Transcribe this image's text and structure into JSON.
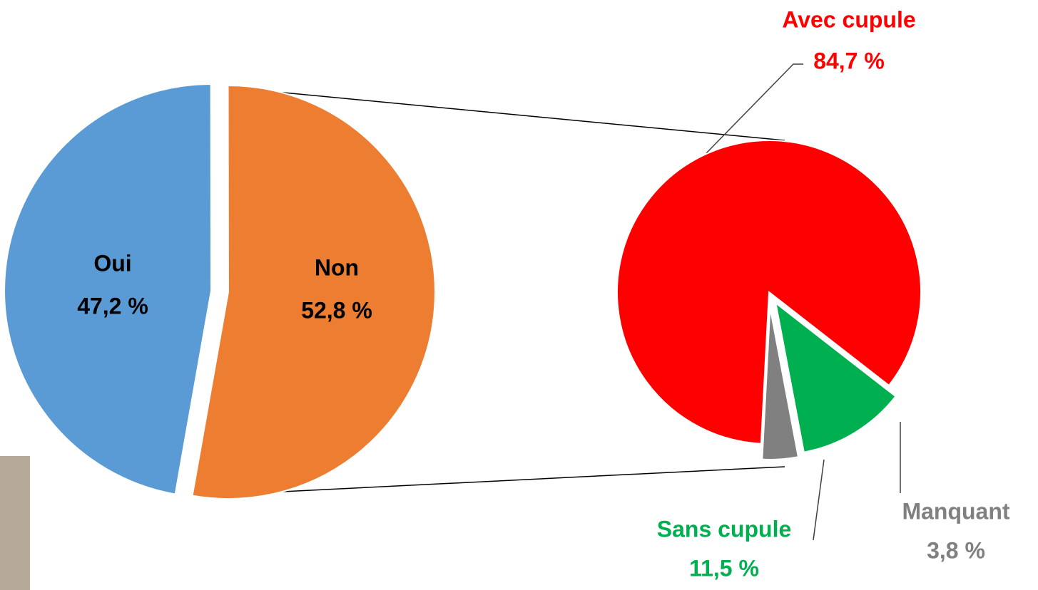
{
  "chart_data": [
    {
      "type": "pie",
      "categories": [
        "Oui",
        "Non"
      ],
      "values": [
        47.2,
        52.8
      ],
      "value_labels": [
        "47,2 %",
        "52,8 %"
      ],
      "colors": [
        "#5b9bd5",
        "#ed7d31"
      ]
    },
    {
      "type": "pie",
      "categories": [
        "Avec cupule",
        "Sans cupule",
        "Manquant"
      ],
      "values": [
        84.7,
        11.5,
        3.8
      ],
      "value_labels": [
        "84,7 %",
        "11,5 %",
        "3,8 %"
      ],
      "colors": [
        "#ff0000",
        "#00b050",
        "#808080"
      ]
    }
  ]
}
